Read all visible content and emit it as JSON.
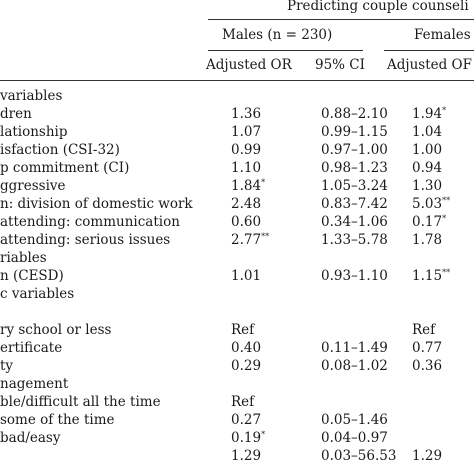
{
  "header": {
    "group_title": "Predicting couple counseli",
    "males": "Males (n = 230)",
    "females": "Females",
    "col_male_or": "Adjusted OR",
    "col_male_ci": "95% CI",
    "col_female_or": "Adjusted OF"
  },
  "rows": [
    {
      "label": "variables",
      "m_or": "",
      "m_sig": "",
      "ci": "",
      "f_or": "",
      "f_sig": ""
    },
    {
      "label": "dren",
      "m_or": "1.36",
      "m_sig": "",
      "ci": "0.88–2.10",
      "f_or": "1.94",
      "f_sig": "*"
    },
    {
      "label": "lationship",
      "m_or": "1.07",
      "m_sig": "",
      "ci": "0.99–1.15",
      "f_or": "1.04",
      "f_sig": ""
    },
    {
      "label": "isfaction (CSI-32)",
      "m_or": "0.99",
      "m_sig": "",
      "ci": "0.97–1.00",
      "f_or": "1.00",
      "f_sig": ""
    },
    {
      "label": "p commitment (CI)",
      "m_or": "1.10",
      "m_sig": "",
      "ci": "0.98–1.23",
      "f_or": "0.94",
      "f_sig": ""
    },
    {
      "label": "ggressive",
      "m_or": "1.84",
      "m_sig": "*",
      "ci": "1.05–3.24",
      "f_or": "1.30",
      "f_sig": ""
    },
    {
      "label": "n: division of domestic work",
      "m_or": "2.48",
      "m_sig": "",
      "ci": "0.83–7.42",
      "f_or": "5.03",
      "f_sig": "**"
    },
    {
      "label": "attending: communication",
      "m_or": "0.60",
      "m_sig": "",
      "ci": "0.34–1.06",
      "f_or": "0.17",
      "f_sig": "*"
    },
    {
      "label": "attending: serious issues",
      "m_or": "2.77",
      "m_sig": "**",
      "ci": "1.33–5.78",
      "f_or": "1.78",
      "f_sig": ""
    },
    {
      "label": "riables",
      "m_or": "",
      "m_sig": "",
      "ci": "",
      "f_or": "",
      "f_sig": ""
    },
    {
      "label": "n (CESD)",
      "m_or": "1.01",
      "m_sig": "",
      "ci": "0.93–1.10",
      "f_or": "1.15",
      "f_sig": "**"
    },
    {
      "label": "c variables",
      "m_or": "",
      "m_sig": "",
      "ci": "",
      "f_or": "",
      "f_sig": ""
    },
    {
      "label": "",
      "m_or": "",
      "m_sig": "",
      "ci": "",
      "f_or": "",
      "f_sig": ""
    },
    {
      "label": "ry school or less",
      "m_or": "Ref",
      "m_sig": "",
      "ci": "",
      "f_or": "Ref",
      "f_sig": ""
    },
    {
      "label": "ertificate",
      "m_or": "0.40",
      "m_sig": "",
      "ci": "0.11–1.49",
      "f_or": "0.77",
      "f_sig": ""
    },
    {
      "label": "ty",
      "m_or": "0.29",
      "m_sig": "",
      "ci": "0.08–1.02",
      "f_or": "0.36",
      "f_sig": ""
    },
    {
      "label": "nagement",
      "m_or": "",
      "m_sig": "",
      "ci": "",
      "f_or": "",
      "f_sig": ""
    },
    {
      "label": "ble/difficult all the time",
      "m_or": "Ref",
      "m_sig": "",
      "ci": "",
      "f_or": "",
      "f_sig": ""
    },
    {
      "label": "some of the time",
      "m_or": "0.27",
      "m_sig": "",
      "ci": "0.05–1.46",
      "f_or": "",
      "f_sig": ""
    },
    {
      "label": "bad/easy",
      "m_or": "0.19",
      "m_sig": "*",
      "ci": "0.04–0.97",
      "f_or": "",
      "f_sig": ""
    },
    {
      "label": "",
      "m_or": "1.29",
      "m_sig": "",
      "ci": "0.03–56.53",
      "f_or": "1.29",
      "f_sig": ""
    }
  ]
}
